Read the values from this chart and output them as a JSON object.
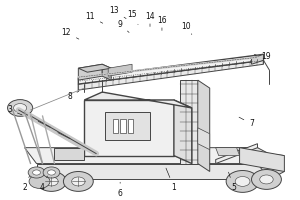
{
  "bg_color": "#ffffff",
  "line_color": "#444444",
  "label_color": "#111111",
  "figsize": [
    3.0,
    2.0
  ],
  "dpi": 100,
  "label_fs": 5.5,
  "labels": {
    "1": [
      0.58,
      0.06,
      0.55,
      0.17
    ],
    "2": [
      0.08,
      0.06,
      0.1,
      0.13
    ],
    "3": [
      0.03,
      0.45,
      0.08,
      0.42
    ],
    "4": [
      0.14,
      0.06,
      0.16,
      0.13
    ],
    "5": [
      0.78,
      0.06,
      0.76,
      0.15
    ],
    "6": [
      0.4,
      0.03,
      0.4,
      0.1
    ],
    "7": [
      0.84,
      0.38,
      0.79,
      0.42
    ],
    "8": [
      0.23,
      0.52,
      0.27,
      0.55
    ],
    "9": [
      0.4,
      0.88,
      0.43,
      0.84
    ],
    "10": [
      0.62,
      0.87,
      0.64,
      0.83
    ],
    "11": [
      0.3,
      0.92,
      0.35,
      0.88
    ],
    "12": [
      0.22,
      0.84,
      0.27,
      0.8
    ],
    "13": [
      0.38,
      0.95,
      0.42,
      0.91
    ],
    "14": [
      0.5,
      0.92,
      0.5,
      0.87
    ],
    "15": [
      0.44,
      0.93,
      0.46,
      0.88
    ],
    "16": [
      0.54,
      0.9,
      0.54,
      0.85
    ],
    "19": [
      0.89,
      0.72,
      0.84,
      0.73
    ]
  }
}
